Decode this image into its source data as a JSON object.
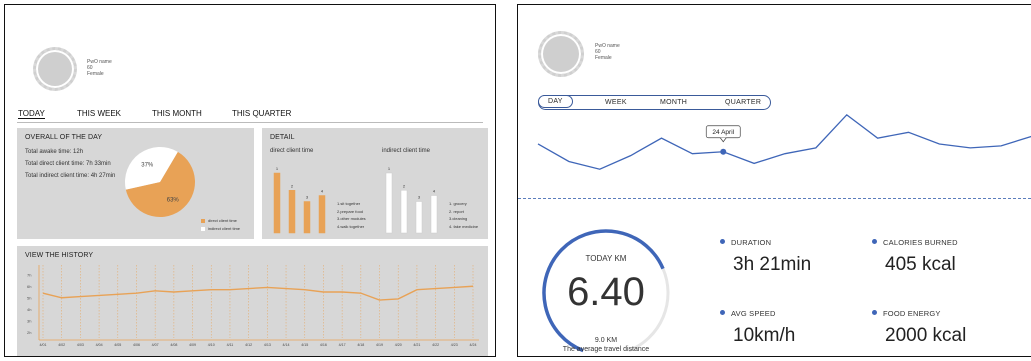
{
  "left": {
    "profile": {
      "name": "PwO name",
      "age": "60",
      "gender": "Female"
    },
    "tabs": [
      "TODAY",
      "THIS WEEK",
      "THIS MONTH",
      "THIS QUARTER"
    ],
    "overall": {
      "title": "OVERALL OF THE DAY",
      "awake": "Total awake time: 12h",
      "direct": "Total direct client time: 7h 33min",
      "indirect": "Total indirect client time: 4h 27min"
    },
    "detail": {
      "title": "DETAIL",
      "direct_title": "direct client time",
      "indirect_title": "indirect client time",
      "direct_items": [
        "1.sit together",
        "2.prepare food",
        "3.other modules",
        "4.walk together"
      ],
      "indirect_items": [
        "1. grocery",
        "2. report",
        "3.cleaning",
        "4. fake medicine"
      ]
    },
    "history": {
      "title": "VIEW THE HISTORY"
    }
  },
  "right": {
    "profile": {
      "name": "PwO name",
      "age": "60",
      "gender": "Female"
    },
    "tabs": [
      "DAY",
      "WEEK",
      "MONTH",
      "QUARTER"
    ],
    "callout": "24 April",
    "today": {
      "label": "TODAY KM",
      "value": "6.40",
      "goal": "9.0 KM",
      "caption": "The average travel distance"
    },
    "metrics": {
      "duration": {
        "label": "DURATION",
        "value": "3h 21min"
      },
      "calories": {
        "label": "CALORIES BURNED",
        "value": "405 kcal"
      },
      "speed": {
        "label": "AVG SPEED",
        "value": "10km/h"
      },
      "food": {
        "label": "FOOD ENERGY",
        "value": "2000 kcal"
      }
    }
  },
  "colors": {
    "orange": "#e8a256",
    "grey": "#d7d7d7",
    "blue": "#3f66b8"
  },
  "chart_data": [
    {
      "type": "pie",
      "labels": [
        "direct client time",
        "indirect client time"
      ],
      "values": [
        63,
        37
      ],
      "value_labels": [
        "63%",
        "37%"
      ]
    },
    {
      "type": "bar",
      "title": "direct client time",
      "categories": [
        "1",
        "2",
        "3",
        "4"
      ],
      "values": [
        8,
        5.7,
        4.2,
        5
      ]
    },
    {
      "type": "bar",
      "title": "indirect client time",
      "categories": [
        "1",
        "2",
        "3",
        "4"
      ],
      "values": [
        8,
        5.7,
        4.2,
        5
      ]
    },
    {
      "type": "line",
      "title": "VIEW THE HISTORY",
      "y_tick_labels": [
        "2h",
        "3h",
        "4h",
        "5h",
        "6h",
        "7h"
      ],
      "x": [
        "4/01",
        "4/02",
        "4/03",
        "4/04",
        "4/05",
        "4/06",
        "4/07",
        "4/08",
        "4/09",
        "4/10",
        "4/11",
        "4/12",
        "4/13",
        "4/14",
        "4/15",
        "4/16",
        "4/17",
        "4/18",
        "4/19",
        "4/20",
        "4/21",
        "4/22",
        "4/23",
        "4/24"
      ],
      "values": [
        5.4,
        5.0,
        5.1,
        5.2,
        5.3,
        5.4,
        5.6,
        5.5,
        5.6,
        5.7,
        5.7,
        5.8,
        5.9,
        5.8,
        5.7,
        5.5,
        5.5,
        5.4,
        4.8,
        4.9,
        5.7,
        5.8,
        5.9,
        6.0
      ],
      "grid": true
    },
    {
      "type": "line",
      "values": [
        3.2,
        2.3,
        1.9,
        2.6,
        3.5,
        2.7,
        2.8,
        2.2,
        2.7,
        3.0,
        4.7,
        3.5,
        3.8,
        3.2,
        3.0,
        3.1,
        3.6
      ],
      "highlight_index": 6,
      "highlight_label": "24 April"
    }
  ]
}
